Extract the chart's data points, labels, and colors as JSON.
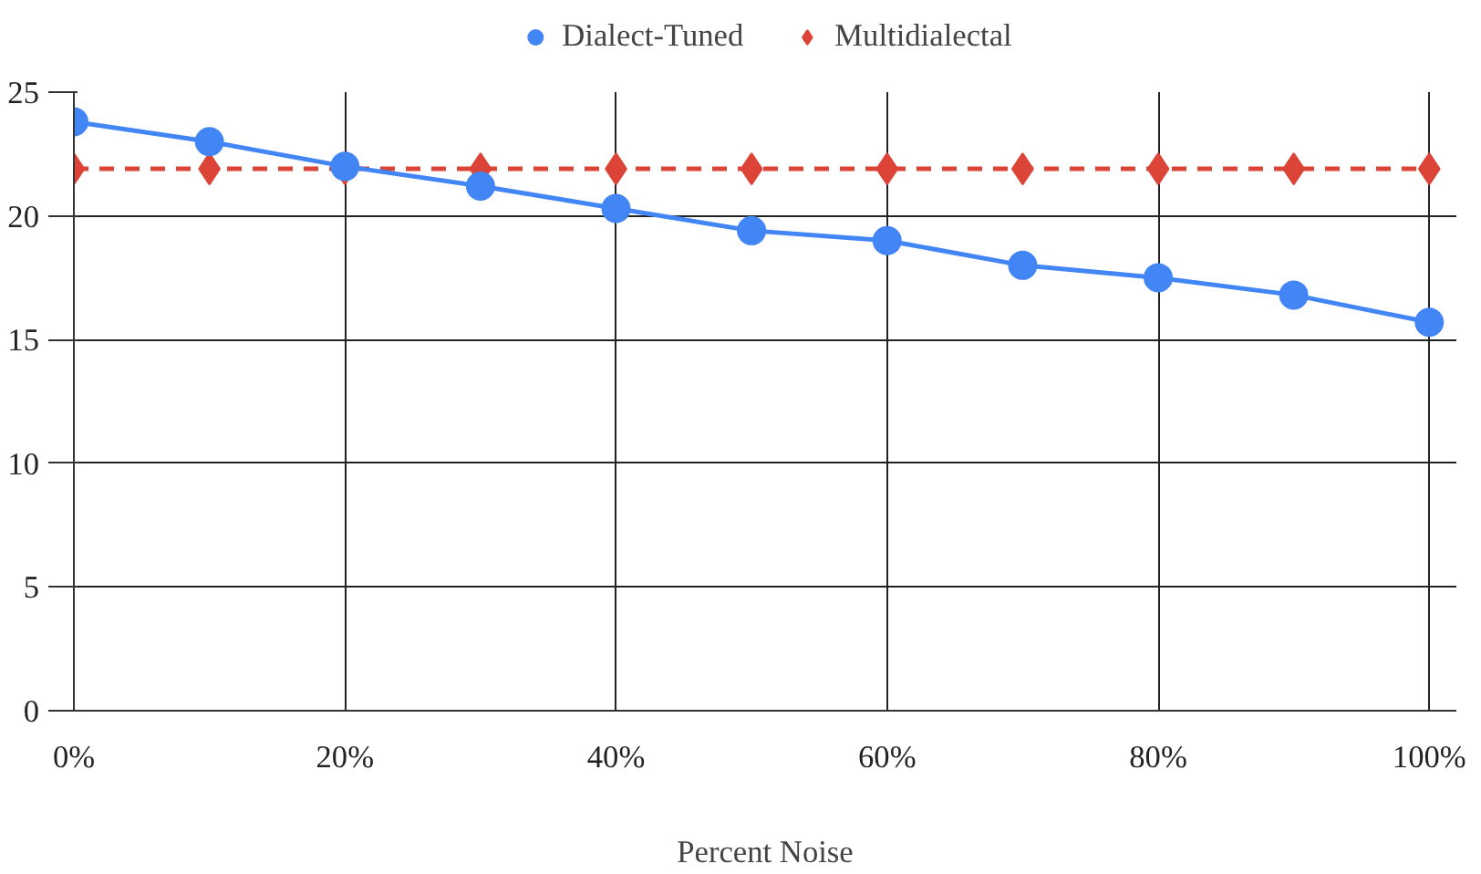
{
  "chart_data": {
    "type": "line",
    "xlabel": "Percent Noise",
    "x": [
      0,
      10,
      20,
      30,
      40,
      50,
      60,
      70,
      80,
      90,
      100
    ],
    "series": [
      {
        "name": "Dialect-Tuned",
        "color": "#4285f4",
        "marker": "circle",
        "line_style": "solid",
        "values": [
          23.8,
          23.0,
          22.0,
          21.2,
          20.3,
          19.4,
          19.0,
          18.0,
          17.5,
          16.8,
          15.7
        ]
      },
      {
        "name": "Multidialectal",
        "color": "#db4437",
        "marker": "diamond",
        "line_style": "dashed",
        "values": [
          21.9,
          21.9,
          21.9,
          21.9,
          21.9,
          21.9,
          21.9,
          21.9,
          21.9,
          21.9,
          21.9
        ]
      }
    ],
    "xlim": [
      0,
      102
    ],
    "xticks": [
      {
        "value": 0,
        "label": "0%"
      },
      {
        "value": 20,
        "label": "20%"
      },
      {
        "value": 40,
        "label": "40%"
      },
      {
        "value": 60,
        "label": "60%"
      },
      {
        "value": 80,
        "label": "80%"
      },
      {
        "value": 100,
        "label": "100%"
      }
    ],
    "ylim": [
      0,
      25
    ],
    "yticks": [
      0,
      5,
      10,
      15,
      20,
      25
    ],
    "grid": true,
    "legend": "top"
  }
}
